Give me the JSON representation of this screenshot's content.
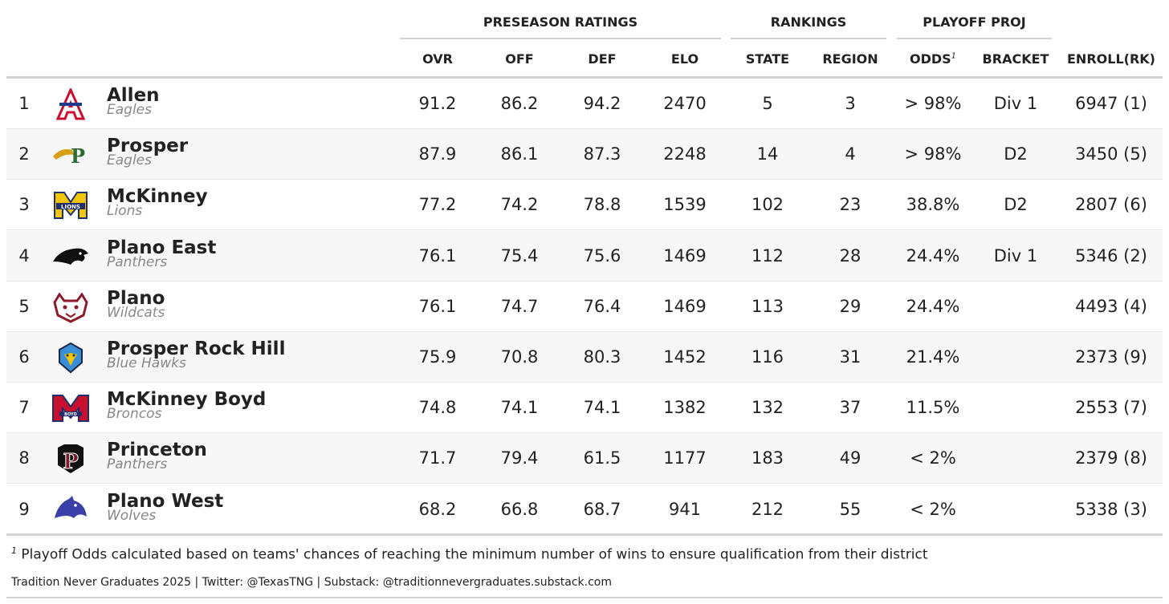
{
  "spanners": {
    "preseason": "PRESEASON RATINGS",
    "rankings": "RANKINGS",
    "playoff": "PLAYOFF PROJ"
  },
  "columns": {
    "ovr": "OVR",
    "off": "OFF",
    "def": "DEF",
    "elo": "ELO",
    "state": "STATE",
    "region": "REGION",
    "odds": "ODDS",
    "odds_marker": "1",
    "bracket": "BRACKET",
    "enroll": "ENROLL(RK)"
  },
  "rows": [
    {
      "rank": "1",
      "name": "Allen",
      "mascot": "Eagles",
      "logo_icon": "allen-eagles-logo-icon",
      "logo_color": "#c8102e",
      "ovr": "91.2",
      "off": "86.2",
      "def": "94.2",
      "elo": "2470",
      "state": "5",
      "region": "3",
      "odds": "> 98%",
      "bracket": "Div 1",
      "enroll": "6947 (1)"
    },
    {
      "rank": "2",
      "name": "Prosper",
      "mascot": "Eagles",
      "logo_icon": "prosper-eagles-logo-icon",
      "logo_color": "#2e6b2e",
      "ovr": "87.9",
      "off": "86.1",
      "def": "87.3",
      "elo": "2248",
      "state": "14",
      "region": "4",
      "odds": "> 98%",
      "bracket": "D2",
      "enroll": "3450 (5)"
    },
    {
      "rank": "3",
      "name": "McKinney",
      "mascot": "Lions",
      "logo_icon": "mckinney-lions-logo-icon",
      "logo_color": "#f2c500",
      "ovr": "77.2",
      "off": "74.2",
      "def": "78.8",
      "elo": "1539",
      "state": "102",
      "region": "23",
      "odds": "38.8%",
      "bracket": "D2",
      "enroll": "2807 (6)"
    },
    {
      "rank": "4",
      "name": "Plano East",
      "mascot": "Panthers",
      "logo_icon": "plano-east-panthers-logo-icon",
      "logo_color": "#111111",
      "ovr": "76.1",
      "off": "75.4",
      "def": "75.6",
      "elo": "1469",
      "state": "112",
      "region": "28",
      "odds": "24.4%",
      "bracket": "Div 1",
      "enroll": "5346 (2)"
    },
    {
      "rank": "5",
      "name": "Plano",
      "mascot": "Wildcats",
      "logo_icon": "plano-wildcats-logo-icon",
      "logo_color": "#8b1a2b",
      "ovr": "76.1",
      "off": "74.7",
      "def": "76.4",
      "elo": "1469",
      "state": "113",
      "region": "29",
      "odds": "24.4%",
      "bracket": "",
      "enroll": "4493 (4)"
    },
    {
      "rank": "6",
      "name": "Prosper Rock Hill",
      "mascot": "Blue Hawks",
      "logo_icon": "prosper-rock-hill-blue-hawks-logo-icon",
      "logo_color": "#3a8fd6",
      "ovr": "75.9",
      "off": "70.8",
      "def": "80.3",
      "elo": "1452",
      "state": "116",
      "region": "31",
      "odds": "21.4%",
      "bracket": "",
      "enroll": "2373 (9)"
    },
    {
      "rank": "7",
      "name": "McKinney Boyd",
      "mascot": "Broncos",
      "logo_icon": "mckinney-boyd-broncos-logo-icon",
      "logo_color": "#c8102e",
      "ovr": "74.8",
      "off": "74.1",
      "def": "74.1",
      "elo": "1382",
      "state": "132",
      "region": "37",
      "odds": "11.5%",
      "bracket": "",
      "enroll": "2553 (7)"
    },
    {
      "rank": "8",
      "name": "Princeton",
      "mascot": "Panthers",
      "logo_icon": "princeton-panthers-logo-icon",
      "logo_color": "#7a1c2e",
      "ovr": "71.7",
      "off": "79.4",
      "def": "61.5",
      "elo": "1177",
      "state": "183",
      "region": "49",
      "odds": "< 2%",
      "bracket": "",
      "enroll": "2379 (8)"
    },
    {
      "rank": "9",
      "name": "Plano West",
      "mascot": "Wolves",
      "logo_icon": "plano-west-wolves-logo-icon",
      "logo_color": "#3b3fa8",
      "ovr": "68.2",
      "off": "66.8",
      "def": "68.7",
      "elo": "941",
      "state": "212",
      "region": "55",
      "odds": "< 2%",
      "bracket": "",
      "enroll": "5338 (3)"
    }
  ],
  "footnote": {
    "marker": "1",
    "text": "Playoff Odds calculated based on teams' chances of reaching the minimum number of wins to ensure qualification from their district"
  },
  "source": "Tradition Never Graduates 2025 | Twitter: @TexasTNG | Substack: @traditionnevergraduates.substack.com"
}
